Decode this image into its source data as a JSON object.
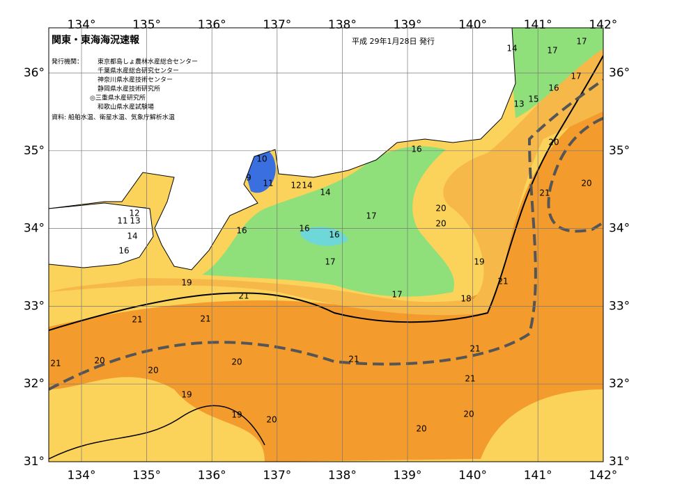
{
  "header": {
    "title": "関東・東海海況速報",
    "date": "平成 29年1月28日 発行",
    "issuers_label": "発行機関：",
    "issuers": [
      "東京都島しょ農林水産総合センター",
      "千葉県水産総合研究センター",
      "神奈川県水産技術センター",
      "静岡県水産技術研究所",
      "◎三重県水産研究所",
      "和歌山県水産試験場"
    ],
    "source": "資料: 船舶水温、衛星水温、気象庁解析水温"
  },
  "map": {
    "lon_labels": [
      "134°",
      "135°",
      "136°",
      "137°",
      "138°",
      "139°",
      "140°",
      "141°",
      "142°"
    ],
    "lat_labels": [
      "36°",
      "35°",
      "34°",
      "33°",
      "32°",
      "31°"
    ],
    "contour_labels": [
      "14",
      "17",
      "17",
      "17",
      "16",
      "13",
      "15",
      "20",
      "20",
      "21",
      "16",
      "10",
      "9",
      "11",
      "12",
      "14",
      "14",
      "17",
      "20",
      "20",
      "16",
      "16",
      "16",
      "17",
      "19",
      "21",
      "17",
      "18",
      "12",
      "11",
      "13",
      "14",
      "16",
      "19",
      "21",
      "21",
      "21",
      "20",
      "21",
      "20",
      "20",
      "21",
      "21",
      "21",
      "19",
      "19",
      "20",
      "20",
      "20"
    ]
  }
}
